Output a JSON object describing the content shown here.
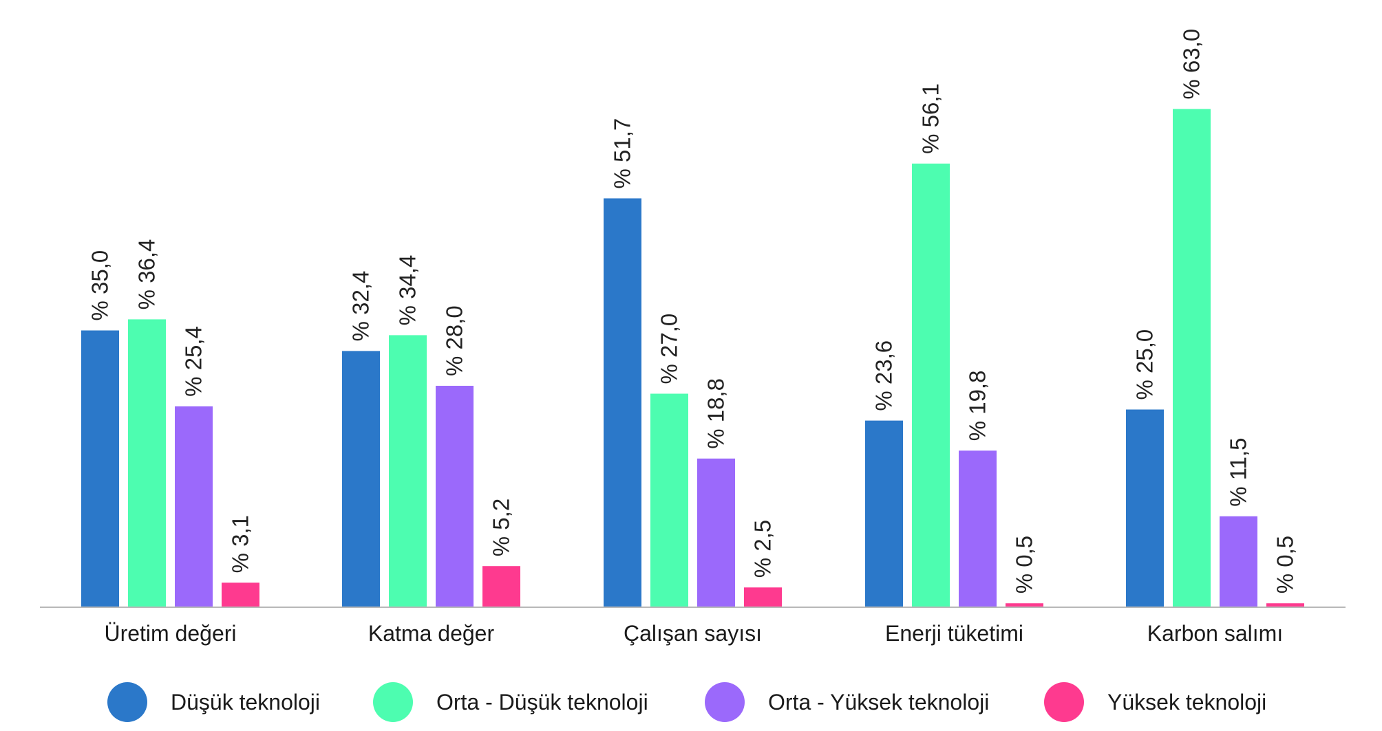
{
  "chart_data": {
    "type": "bar",
    "title": "",
    "xlabel": "",
    "ylabel": "",
    "ylim": [
      0,
      70
    ],
    "grid": false,
    "legend_position": "bottom",
    "value_prefix": "% ",
    "categories": [
      "Üretim değeri",
      "Katma değer",
      "Çalışan sayısı",
      "Enerji tüketimi",
      "Karbon salımı"
    ],
    "series": [
      {
        "name": "Düşük teknoloji",
        "color": "#2b78c9",
        "values": [
          35.0,
          32.4,
          51.7,
          23.6,
          25.0
        ],
        "labels": [
          "35,0",
          "32,4",
          "51,7",
          "23,6",
          "25,0"
        ]
      },
      {
        "name": "Orta - Düşük teknoloji",
        "color": "#4dfdb0",
        "values": [
          36.4,
          34.4,
          27.0,
          56.1,
          63.0
        ],
        "labels": [
          "36,4",
          "34,4",
          "27,0",
          "56,1",
          "63,0"
        ]
      },
      {
        "name": "Orta - Yüksek teknoloji",
        "color": "#9b69fb",
        "values": [
          25.4,
          28.0,
          18.8,
          19.8,
          11.5
        ],
        "labels": [
          "25,4",
          "28,0",
          "18,8",
          "19,8",
          "11,5"
        ]
      },
      {
        "name": "Yüksek teknoloji",
        "color": "#fe3a8f",
        "values": [
          3.1,
          5.2,
          2.5,
          0.5,
          0.5
        ],
        "labels": [
          "3,1",
          "5,2",
          "2,5",
          "0,5",
          "0,5"
        ]
      }
    ]
  },
  "colors": {
    "axis": "#b8b8b8",
    "text": "#1a1a1a"
  }
}
